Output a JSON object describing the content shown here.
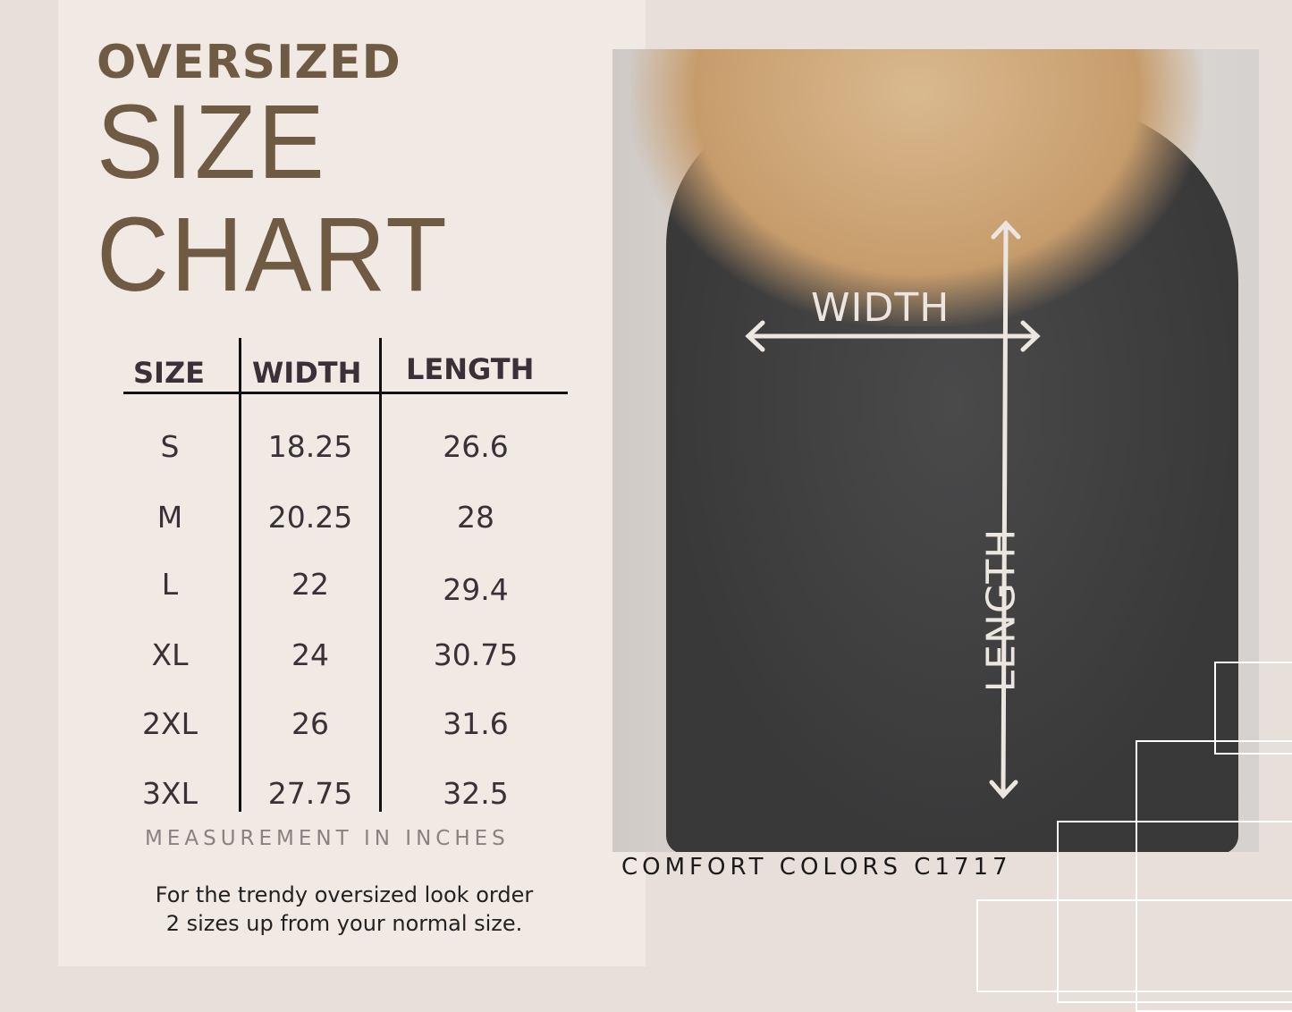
{
  "title": {
    "line1": "OVERSIZED",
    "line2": "SIZE",
    "line3": "CHART"
  },
  "table": {
    "headers": [
      "SIZE",
      "WIDTH",
      "LENGTH"
    ],
    "rows": [
      {
        "size": "S",
        "width": "18.25",
        "length": "26.6"
      },
      {
        "size": "M",
        "width": "20.25",
        "length": "28"
      },
      {
        "size": "L",
        "width": "22",
        "length": "29.4"
      },
      {
        "size": "XL",
        "width": "24",
        "length": "30.75"
      },
      {
        "size": "2XL",
        "width": "26",
        "length": "31.6"
      },
      {
        "size": "3XL",
        "width": "27.75",
        "length": "32.5"
      }
    ]
  },
  "measurement_note": "MEASUREMENT IN INCHES",
  "fit_note": {
    "line1": "For the trendy oversized look order",
    "line2": "2 sizes up from your normal size."
  },
  "photo": {
    "width_label": "WIDTH",
    "length_label": "LENGTH"
  },
  "brand": "COMFORT COLORS C1717",
  "colors": {
    "title": "#6f5a43",
    "text": "#3b3038",
    "panel": "#f0e9e4",
    "background": "#e8dfda"
  }
}
